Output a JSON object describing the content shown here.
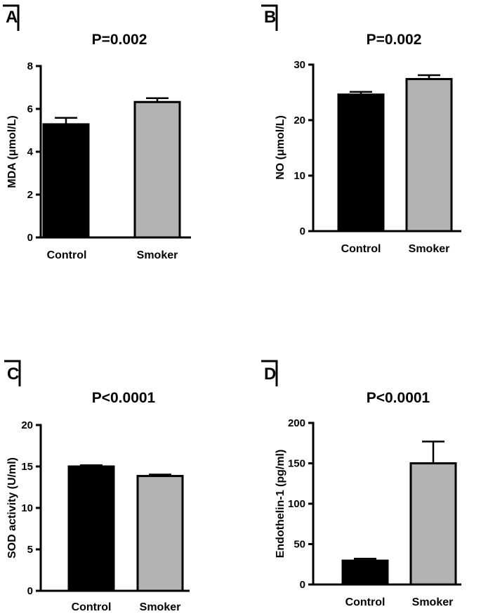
{
  "chart_data": [
    {
      "type": "bar",
      "panel": "A",
      "title": "P=0.002",
      "xlabel": "",
      "ylabel": "MDA (μmol/L)",
      "categories": [
        "Control",
        "Smoker"
      ],
      "values": [
        5.28,
        6.32
      ],
      "errors": [
        0.3,
        0.18
      ],
      "colors": [
        "#000000",
        "#b3b3b3"
      ],
      "ylim": [
        0,
        8
      ],
      "yticks": [
        "0",
        "2",
        "4",
        "6",
        "8"
      ],
      "grid": false
    },
    {
      "type": "bar",
      "panel": "B",
      "title": "P=0.002",
      "xlabel": "",
      "ylabel": "NO (μmol/L)",
      "categories": [
        "Control",
        "Smoker"
      ],
      "values": [
        24.6,
        27.4
      ],
      "errors": [
        0.5,
        0.7
      ],
      "colors": [
        "#000000",
        "#b3b3b3"
      ],
      "ylim": [
        0,
        30
      ],
      "yticks": [
        "0",
        "10",
        "20",
        "30"
      ],
      "grid": false
    },
    {
      "type": "bar",
      "panel": "C",
      "title": "P<0.0001",
      "xlabel": "",
      "ylabel": "SOD activity (U/ml)",
      "categories": [
        "Control",
        "Smoker"
      ],
      "values": [
        15.0,
        13.85
      ],
      "errors": [
        0.15,
        0.18
      ],
      "colors": [
        "#000000",
        "#b3b3b3"
      ],
      "ylim": [
        0,
        20
      ],
      "yticks": [
        "0",
        "5",
        "10",
        "15",
        "20"
      ],
      "grid": false
    },
    {
      "type": "bar",
      "panel": "D",
      "title": "P<0.0001",
      "xlabel": "",
      "ylabel": "Endothelin-1 (pg/ml)",
      "categories": [
        "Control",
        "Smoker"
      ],
      "values": [
        29.5,
        150
      ],
      "errors": [
        2.5,
        27
      ],
      "colors": [
        "#000000",
        "#b3b3b3"
      ],
      "ylim": [
        0,
        200
      ],
      "yticks": [
        "0",
        "50",
        "100",
        "150",
        "200"
      ],
      "grid": false
    }
  ]
}
